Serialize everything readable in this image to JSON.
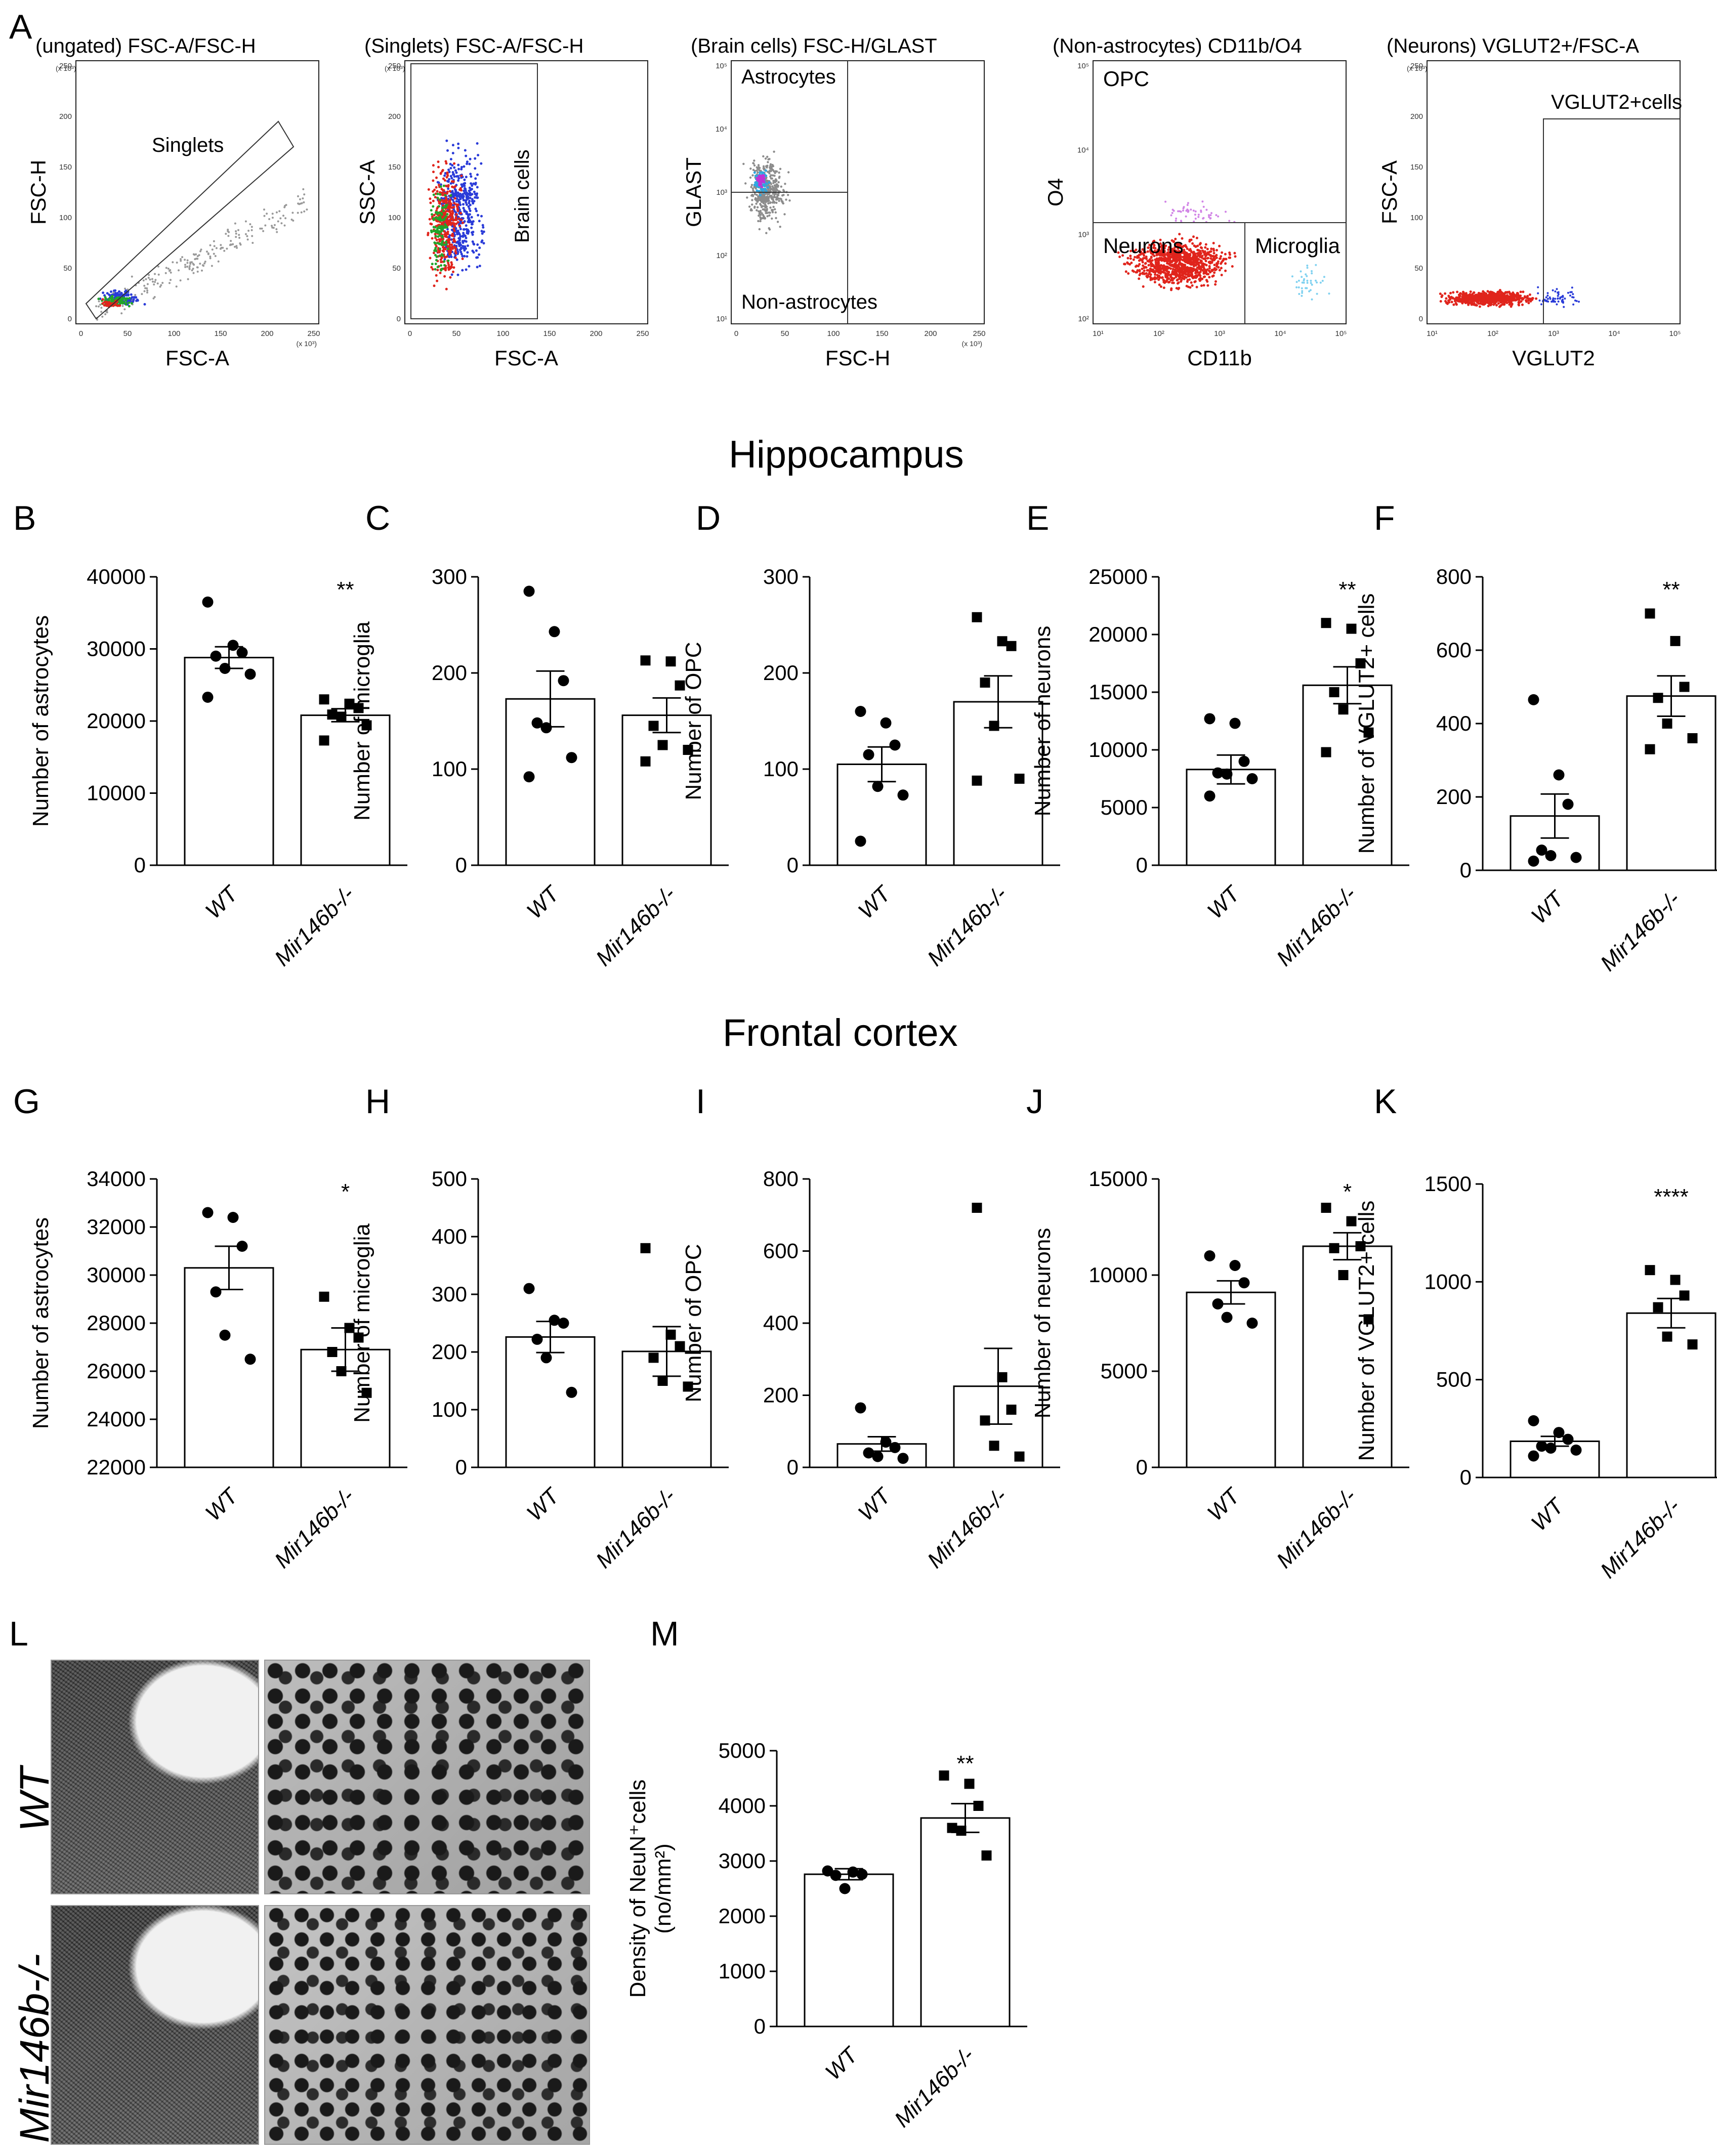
{
  "figure": {
    "panel_letters": [
      "A",
      "B",
      "C",
      "D",
      "E",
      "F",
      "G",
      "H",
      "I",
      "J",
      "K",
      "L",
      "M"
    ],
    "section_titles": {
      "hippocampus": "Hippocampus",
      "frontal_cortex": "Frontal cortex"
    },
    "histology_labels": {
      "wt": "WT",
      "ko": "Mir146b-/-"
    }
  },
  "flow_panels": [
    {
      "title": "(ungated) FSC-A/FSC-H",
      "xlabel": "FSC-A",
      "ylabel": "FSC-H",
      "scale": "linear",
      "xticks": [
        "0",
        "50",
        "100",
        "150",
        "200",
        "250"
      ],
      "yticks": [
        "0",
        "50",
        "100",
        "150",
        "200",
        "250"
      ],
      "xmult": "(x 10³)",
      "ymult": "(x 10³)",
      "gate_labels": [
        "Singlets"
      ]
    },
    {
      "title": "(Singlets) FSC-A/FSC-H",
      "xlabel": "FSC-A",
      "ylabel": "SSC-A",
      "scale": "linear",
      "xticks": [
        "0",
        "50",
        "100",
        "150",
        "200",
        "250"
      ],
      "yticks": [
        "0",
        "50",
        "100",
        "150",
        "200",
        "250"
      ],
      "xmult": "",
      "ymult": "(x 10³)",
      "gate_labels": [
        "Brain cells"
      ]
    },
    {
      "title": "(Brain cells) FSC-H/GLAST",
      "xlabel": "FSC-H",
      "ylabel": "GLAST",
      "scale": "log-y",
      "xticks": [
        "0",
        "50",
        "100",
        "150",
        "200",
        "250"
      ],
      "yticks": [
        "10¹",
        "10²",
        "10³",
        "10⁴",
        "10⁵"
      ],
      "xmult": "(x 10³)",
      "ymult": "",
      "gate_labels": [
        "Astrocytes",
        "Non-astrocytes"
      ]
    },
    {
      "title": "(Non-astrocytes) CD11b/O4",
      "xlabel": "CD11b",
      "ylabel": "O4",
      "scale": "log",
      "xticks": [
        "10¹",
        "10²",
        "10³",
        "10⁴",
        "10⁵"
      ],
      "yticks": [
        "10²",
        "10³",
        "10⁴",
        "10⁵"
      ],
      "xmult": "",
      "ymult": "",
      "gate_labels": [
        "OPC",
        "Neurons",
        "Microglia"
      ]
    },
    {
      "title": "(Neurons) VGLUT2+/FSC-A",
      "xlabel": "VGLUT2",
      "ylabel": "FSC-A",
      "scale": "log-x",
      "xticks": [
        "10¹",
        "10²",
        "10³",
        "10⁴",
        "10⁵"
      ],
      "yticks": [
        "0",
        "50",
        "100",
        "150",
        "200",
        "250"
      ],
      "xmult": "",
      "ymult": "(x 10³)",
      "gate_labels": [
        "VGLUT2+cells"
      ]
    }
  ],
  "chart_data": [
    {
      "id": "B",
      "type": "bar",
      "region": "Hippocampus",
      "ylabel": "Number of astrocytes",
      "categories": [
        "WT",
        "Mir146b-/-"
      ],
      "ylim": [
        0,
        40000
      ],
      "yticks": [
        0,
        10000,
        20000,
        30000,
        40000
      ],
      "ytick_labels": [
        "0",
        "10000",
        "20000",
        "30000",
        "40000"
      ],
      "values": [
        28800,
        20800
      ],
      "sem": [
        1500,
        900
      ],
      "points": [
        [
          36500,
          30500,
          29500,
          29000,
          27300,
          26500,
          23300
        ],
        [
          23000,
          22400,
          21800,
          20900,
          20600,
          19400,
          17300
        ]
      ],
      "significance": [
        "",
        "**"
      ]
    },
    {
      "id": "C",
      "type": "bar",
      "region": "Hippocampus",
      "ylabel": "Number of microglia",
      "categories": [
        "WT",
        "Mir146b-/-"
      ],
      "ylim": [
        0,
        300
      ],
      "yticks": [
        0,
        100,
        200,
        300
      ],
      "ytick_labels": [
        "0",
        "100",
        "200",
        "300"
      ],
      "values": [
        173,
        156
      ],
      "sem": [
        29,
        18
      ],
      "points": [
        [
          285,
          243,
          192,
          148,
          143,
          112,
          92
        ],
        [
          213,
          212,
          187,
          145,
          125,
          120,
          108
        ]
      ],
      "significance": [
        "",
        ""
      ]
    },
    {
      "id": "D",
      "type": "bar",
      "region": "Hippocampus",
      "ylabel": "Number of OPC",
      "categories": [
        "WT",
        "Mir146b-/-"
      ],
      "ylim": [
        0,
        300
      ],
      "yticks": [
        0,
        100,
        200,
        300
      ],
      "ytick_labels": [
        "0",
        "100",
        "200",
        "300"
      ],
      "values": [
        105,
        170
      ],
      "sem": [
        18,
        27
      ],
      "points": [
        [
          160,
          148,
          125,
          115,
          82,
          73,
          25
        ],
        [
          258,
          233,
          228,
          190,
          145,
          90,
          88
        ]
      ],
      "significance": [
        "",
        ""
      ]
    },
    {
      "id": "E",
      "type": "bar",
      "region": "Hippocampus",
      "ylabel": "Number of neurons",
      "categories": [
        "WT",
        "Mir146b-/-"
      ],
      "ylim": [
        0,
        25000
      ],
      "yticks": [
        0,
        5000,
        10000,
        15000,
        20000,
        25000
      ],
      "ytick_labels": [
        "0",
        "5000",
        "10000",
        "15000",
        "20000",
        "25000"
      ],
      "values": [
        8300,
        15600
      ],
      "sem": [
        1250,
        1600
      ],
      "points": [
        [
          12700,
          12300,
          9000,
          8000,
          7900,
          7500,
          6000
        ],
        [
          21000,
          20500,
          17500,
          15000,
          13500,
          11500,
          9800
        ]
      ],
      "significance": [
        "",
        "**"
      ]
    },
    {
      "id": "F",
      "type": "bar",
      "region": "Hippocampus",
      "ylabel": "Number of VGLUT2+ cells",
      "categories": [
        "WT",
        "Mir146b-/-"
      ],
      "ylim": [
        0,
        800
      ],
      "yticks": [
        0,
        200,
        400,
        600,
        800
      ],
      "ytick_labels": [
        "0",
        "200",
        "400",
        "600",
        "800"
      ],
      "values": [
        148,
        475
      ],
      "sem": [
        60,
        55
      ],
      "points": [
        [
          465,
          260,
          180,
          55,
          40,
          35,
          25
        ],
        [
          700,
          625,
          500,
          470,
          400,
          360,
          330
        ]
      ],
      "significance": [
        "",
        "**"
      ]
    },
    {
      "id": "G",
      "type": "bar",
      "region": "Frontal cortex",
      "ylabel": "Number of astrocytes",
      "categories": [
        "WT",
        "Mir146b-/-"
      ],
      "ylim": [
        22000,
        34000
      ],
      "yticks": [
        22000,
        24000,
        26000,
        28000,
        30000,
        32000,
        34000
      ],
      "ytick_labels": [
        "22000",
        "24000",
        "26000",
        "28000",
        "30000",
        "32000",
        "34000"
      ],
      "values": [
        30300,
        26900
      ],
      "sem": [
        900,
        900
      ],
      "points": [
        [
          32600,
          32400,
          31200,
          29300,
          27500,
          26500
        ],
        [
          29100,
          27800,
          27400,
          26800,
          26000,
          25100
        ]
      ],
      "significance": [
        "",
        "*"
      ]
    },
    {
      "id": "H",
      "type": "bar",
      "region": "Frontal cortex",
      "ylabel": "Number of microglia",
      "categories": [
        "WT",
        "Mir146b-/-"
      ],
      "ylim": [
        0,
        500
      ],
      "yticks": [
        0,
        100,
        200,
        300,
        400,
        500
      ],
      "ytick_labels": [
        "0",
        "100",
        "200",
        "300",
        "400",
        "500"
      ],
      "values": [
        226,
        201
      ],
      "sem": [
        27,
        43
      ],
      "points": [
        [
          310,
          255,
          250,
          222,
          190,
          130
        ],
        [
          380,
          230,
          210,
          190,
          150,
          140
        ]
      ],
      "significance": [
        "",
        ""
      ]
    },
    {
      "id": "I",
      "type": "bar",
      "region": "Frontal cortex",
      "ylabel": "Number of OPC",
      "categories": [
        "WT",
        "Mir146b-/-"
      ],
      "ylim": [
        0,
        800
      ],
      "yticks": [
        0,
        200,
        400,
        600,
        800
      ],
      "ytick_labels": [
        "0",
        "200",
        "400",
        "600",
        "800"
      ],
      "values": [
        65,
        225
      ],
      "sem": [
        20,
        105
      ],
      "points": [
        [
          165,
          70,
          55,
          40,
          30,
          25
        ],
        [
          720,
          250,
          160,
          130,
          60,
          30
        ]
      ],
      "significance": [
        "",
        ""
      ]
    },
    {
      "id": "J",
      "type": "bar",
      "region": "Frontal cortex",
      "ylabel": "Number of neurons",
      "categories": [
        "WT",
        "Mir146b-/-"
      ],
      "ylim": [
        0,
        15000
      ],
      "yticks": [
        0,
        5000,
        10000,
        15000
      ],
      "ytick_labels": [
        "0",
        "5000",
        "10000",
        "15000"
      ],
      "values": [
        9100,
        11500
      ],
      "sem": [
        600,
        700
      ],
      "points": [
        [
          11000,
          10500,
          9600,
          8500,
          7800,
          7500
        ],
        [
          13500,
          12800,
          11500,
          11400,
          10000,
          7700
        ]
      ],
      "significance": [
        "",
        "*"
      ]
    },
    {
      "id": "K",
      "type": "bar",
      "region": "Frontal cortex",
      "ylabel": "Number of VGLUT2+ cells",
      "categories": [
        "WT",
        "Mir146b-/-"
      ],
      "ylim": [
        0,
        1500
      ],
      "yticks": [
        0,
        500,
        1000,
        1500
      ],
      "ytick_labels": [
        "0",
        "500",
        "1000",
        "1500"
      ],
      "values": [
        185,
        840
      ],
      "sem": [
        25,
        75
      ],
      "points": [
        [
          290,
          230,
          195,
          160,
          150,
          140,
          110
        ],
        [
          1060,
          1010,
          930,
          870,
          720,
          680
        ]
      ],
      "significance": [
        "",
        "****"
      ]
    },
    {
      "id": "M",
      "type": "bar",
      "region": "",
      "ylabel": "Density of NeuN⁺cells",
      "ylabel2": "(no/mm²)",
      "categories": [
        "WT",
        "Mir146b-/-"
      ],
      "ylim": [
        0,
        5000
      ],
      "yticks": [
        0,
        1000,
        2000,
        3000,
        4000,
        5000
      ],
      "ytick_labels": [
        "0",
        "1000",
        "2000",
        "3000",
        "4000",
        "5000"
      ],
      "values": [
        2760,
        3780
      ],
      "sem": [
        100,
        260
      ],
      "points": [
        [
          2820,
          2800,
          2760,
          2740,
          2500
        ],
        [
          4550,
          4400,
          4000,
          3600,
          3550,
          3100
        ]
      ],
      "significance": [
        "",
        "**"
      ]
    }
  ]
}
